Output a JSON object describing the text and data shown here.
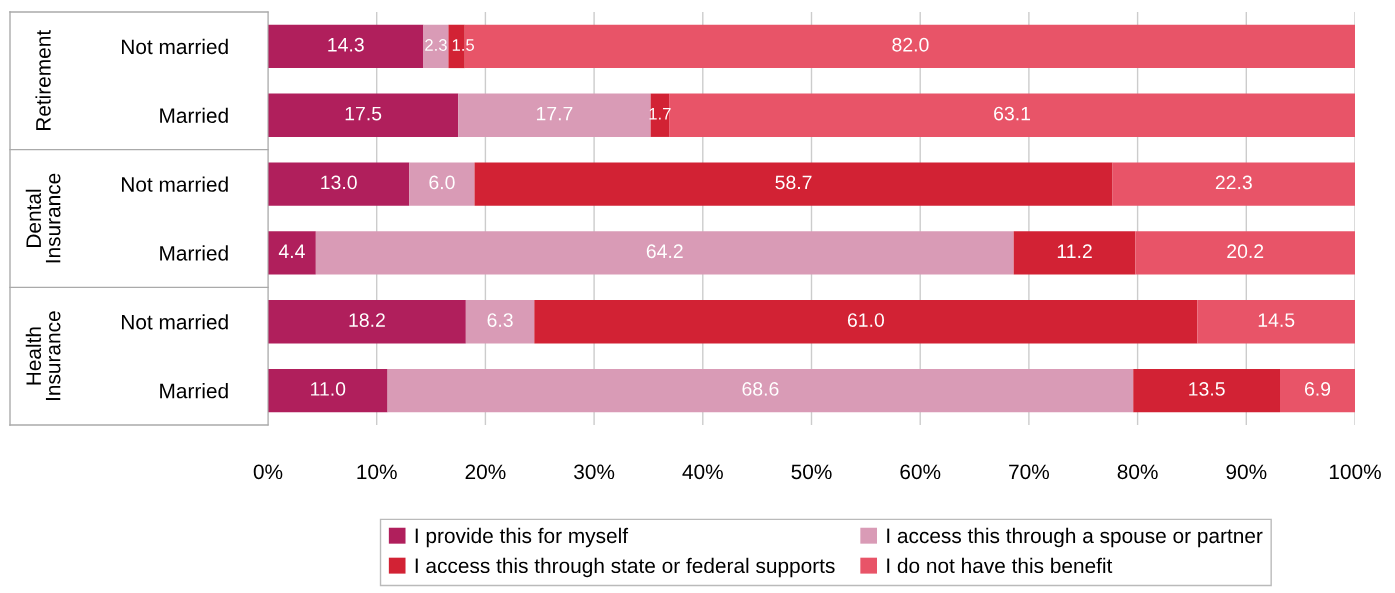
{
  "chart_data": {
    "type": "bar",
    "orientation": "horizontal",
    "stacked": true,
    "categories": [
      "Not married",
      "Married",
      "Not married",
      "Married",
      "Not married",
      "Married"
    ],
    "series": [
      {
        "name": "I provide this for myself",
        "color": "#b01f5c",
        "values": [
          14.3,
          17.5,
          13.0,
          4.4,
          18.2,
          11.0
        ],
        "value_labels": [
          "14.3",
          "17.5",
          "13.0",
          "4.4",
          "18.2",
          "11.0"
        ]
      },
      {
        "name": "I access this through a spouse or partner",
        "color": "#d99bb6",
        "values": [
          2.3,
          17.7,
          6.0,
          64.2,
          6.3,
          68.6
        ],
        "value_labels": [
          "2.3",
          "17.7",
          "6.0",
          "64.2",
          "6.3",
          "68.6"
        ]
      },
      {
        "name": "I access this through state or federal supports",
        "color": "#d22234",
        "values": [
          1.5,
          1.7,
          58.7,
          11.2,
          61.0,
          13.5
        ],
        "value_labels": [
          "1.5",
          "1.7",
          "58.7",
          "11.2",
          "61.0",
          "13.5"
        ]
      },
      {
        "name": "I do not have this benefit",
        "color": "#e85468",
        "values": [
          82.0,
          63.1,
          22.3,
          20.2,
          14.5,
          6.9
        ],
        "value_labels": [
          "82.0",
          "63.1",
          "22.3",
          "20.2",
          "14.5",
          "6.9"
        ]
      }
    ],
    "annotations": [
      "Retirement",
      "Dental\nInsurance",
      "Health\nInsurance"
    ],
    "xlim": [
      0,
      100
    ],
    "xticks": [
      {
        "value": 0,
        "label": "0%"
      },
      {
        "value": 10,
        "label": "10%"
      },
      {
        "value": 20,
        "label": "20%"
      },
      {
        "value": 30,
        "label": "30%"
      },
      {
        "value": 40,
        "label": "40%"
      },
      {
        "value": 50,
        "label": "50%"
      },
      {
        "value": 60,
        "label": "60%"
      },
      {
        "value": 70,
        "label": "70%"
      },
      {
        "value": 80,
        "label": "80%"
      },
      {
        "value": 90,
        "label": "90%"
      },
      {
        "value": 100,
        "label": "100%"
      }
    ],
    "grid": "x",
    "legend": "bottom"
  }
}
